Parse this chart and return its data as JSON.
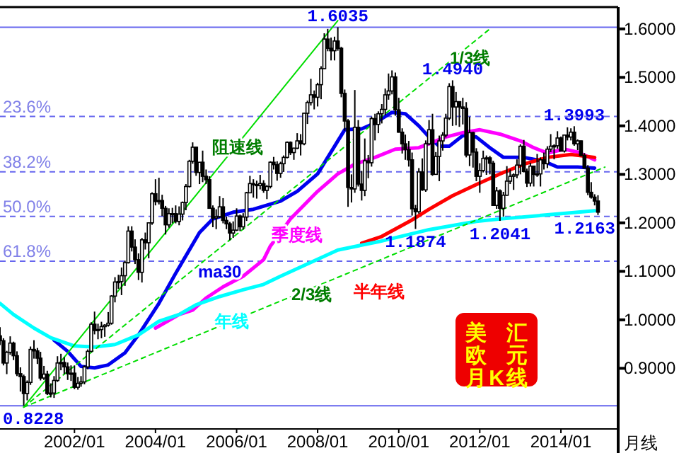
{
  "chart_data": {
    "type": "candlestick",
    "xlim": [
      "2000-03",
      "2015-06"
    ],
    "ylim": [
      0.775,
      1.645
    ],
    "xticks": [
      {
        "value": "2002-01",
        "label": "2002/01"
      },
      {
        "value": "2004-01",
        "label": "2004/01"
      },
      {
        "value": "2006-01",
        "label": "2006/01"
      },
      {
        "value": "2008-01",
        "label": "2008/01"
      },
      {
        "value": "2010-01",
        "label": "2010/01"
      },
      {
        "value": "2012-01",
        "label": "2012/01"
      },
      {
        "value": "2014-01",
        "label": "2014/01"
      }
    ],
    "yticks": [
      {
        "value": 0.9,
        "label": "0.9000"
      },
      {
        "value": 1.0,
        "label": "1.0000"
      },
      {
        "value": 1.1,
        "label": "1.1000"
      },
      {
        "value": 1.2,
        "label": "1.2000"
      },
      {
        "value": 1.3,
        "label": "1.3000"
      },
      {
        "value": 1.4,
        "label": "1.4000"
      },
      {
        "value": 1.5,
        "label": "1.5000"
      },
      {
        "value": 1.6,
        "label": "1.6000"
      }
    ],
    "series": [
      {
        "color": "#000000",
        "x": [
          "2000-03",
          "2000-04",
          "2000-05",
          "2000-06",
          "2000-07",
          "2000-08",
          "2000-09",
          "2000-10",
          "2000-11",
          "2000-12",
          "2001-01",
          "2001-02",
          "2001-03",
          "2001-04",
          "2001-05",
          "2001-06",
          "2001-07",
          "2001-08",
          "2001-09",
          "2001-10",
          "2001-11",
          "2001-12",
          "2002-01",
          "2002-02",
          "2002-03",
          "2002-04",
          "2002-05",
          "2002-06",
          "2002-07",
          "2002-08",
          "2002-09",
          "2002-10",
          "2002-11",
          "2002-12",
          "2003-01",
          "2003-02",
          "2003-03",
          "2003-04",
          "2003-05",
          "2003-06",
          "2003-07",
          "2003-08",
          "2003-09",
          "2003-10",
          "2003-11",
          "2003-12",
          "2004-01",
          "2004-02",
          "2004-03",
          "2004-04",
          "2004-05",
          "2004-06",
          "2004-07",
          "2004-08",
          "2004-09",
          "2004-10",
          "2004-11",
          "2004-12",
          "2005-01",
          "2005-02",
          "2005-03",
          "2005-04",
          "2005-05",
          "2005-06",
          "2005-07",
          "2005-08",
          "2005-09",
          "2005-10",
          "2005-11",
          "2005-12",
          "2006-01",
          "2006-02",
          "2006-03",
          "2006-04",
          "2006-05",
          "2006-06",
          "2006-07",
          "2006-08",
          "2006-09",
          "2006-10",
          "2006-11",
          "2006-12",
          "2007-01",
          "2007-02",
          "2007-03",
          "2007-04",
          "2007-05",
          "2007-06",
          "2007-07",
          "2007-08",
          "2007-09",
          "2007-10",
          "2007-11",
          "2007-12",
          "2008-01",
          "2008-02",
          "2008-03",
          "2008-04",
          "2008-05",
          "2008-06",
          "2008-07",
          "2008-08",
          "2008-09",
          "2008-10",
          "2008-11",
          "2008-12",
          "2009-01",
          "2009-02",
          "2009-03",
          "2009-04",
          "2009-05",
          "2009-06",
          "2009-07",
          "2009-08",
          "2009-09",
          "2009-10",
          "2009-11",
          "2009-12",
          "2010-01",
          "2010-02",
          "2010-03",
          "2010-04",
          "2010-05",
          "2010-06",
          "2010-07",
          "2010-08",
          "2010-09",
          "2010-10",
          "2010-11",
          "2010-12",
          "2011-01",
          "2011-02",
          "2011-03",
          "2011-04",
          "2011-05",
          "2011-06",
          "2011-07",
          "2011-08",
          "2011-09",
          "2011-10",
          "2011-11",
          "2011-12",
          "2012-01",
          "2012-02",
          "2012-03",
          "2012-04",
          "2012-05",
          "2012-06",
          "2012-07",
          "2012-08",
          "2012-09",
          "2012-10",
          "2012-11",
          "2012-12",
          "2013-01",
          "2013-02",
          "2013-03",
          "2013-04",
          "2013-05",
          "2013-06",
          "2013-07",
          "2013-08",
          "2013-09",
          "2013-10",
          "2013-11",
          "2013-12",
          "2014-01",
          "2014-02",
          "2014-03",
          "2014-04",
          "2014-05",
          "2014-06",
          "2014-07",
          "2014-08",
          "2014-09",
          "2014-10",
          "2014-11",
          "2014-12"
        ],
        "ohlc": [
          [
            0.967,
            0.985,
            0.948,
            0.957
          ],
          [
            0.957,
            0.962,
            0.906,
            0.911
          ],
          [
            0.911,
            0.936,
            0.888,
            0.933
          ],
          [
            0.933,
            0.966,
            0.928,
            0.952
          ],
          [
            0.952,
            0.955,
            0.917,
            0.926
          ],
          [
            0.926,
            0.935,
            0.884,
            0.889
          ],
          [
            0.889,
            0.902,
            0.852,
            0.883
          ],
          [
            0.883,
            0.887,
            0.8228,
            0.848
          ],
          [
            0.848,
            0.875,
            0.834,
            0.871
          ],
          [
            0.871,
            0.945,
            0.866,
            0.939
          ],
          [
            0.939,
            0.958,
            0.92,
            0.936
          ],
          [
            0.936,
            0.942,
            0.909,
            0.921
          ],
          [
            0.921,
            0.934,
            0.875,
            0.88
          ],
          [
            0.88,
            0.905,
            0.876,
            0.888
          ],
          [
            0.888,
            0.895,
            0.845,
            0.848
          ],
          [
            0.848,
            0.869,
            0.84,
            0.849
          ],
          [
            0.849,
            0.884,
            0.839,
            0.875
          ],
          [
            0.875,
            0.925,
            0.872,
            0.911
          ],
          [
            0.911,
            0.93,
            0.896,
            0.912
          ],
          [
            0.912,
            0.923,
            0.888,
            0.903
          ],
          [
            0.903,
            0.912,
            0.876,
            0.889
          ],
          [
            0.889,
            0.906,
            0.874,
            0.89
          ],
          [
            0.89,
            0.906,
            0.857,
            0.861
          ],
          [
            0.861,
            0.882,
            0.856,
            0.869
          ],
          [
            0.869,
            0.884,
            0.862,
            0.872
          ],
          [
            0.872,
            0.906,
            0.867,
            0.903
          ],
          [
            0.903,
            0.939,
            0.898,
            0.935
          ],
          [
            0.935,
            0.995,
            0.933,
            0.991
          ],
          [
            0.991,
            1.017,
            0.97,
            0.978
          ],
          [
            0.978,
            0.992,
            0.96,
            0.98
          ],
          [
            0.98,
            0.996,
            0.962,
            0.986
          ],
          [
            0.986,
            0.991,
            0.965,
            0.989
          ],
          [
            0.989,
            1.016,
            0.986,
            0.993
          ],
          [
            0.993,
            1.051,
            0.99,
            1.049
          ],
          [
            1.049,
            1.088,
            1.036,
            1.078
          ],
          [
            1.078,
            1.093,
            1.064,
            1.079
          ],
          [
            1.079,
            1.108,
            1.051,
            1.091
          ],
          [
            1.091,
            1.122,
            1.07,
            1.118
          ],
          [
            1.118,
            1.193,
            1.116,
            1.183
          ],
          [
            1.183,
            1.193,
            1.141,
            1.15
          ],
          [
            1.15,
            1.166,
            1.115,
            1.124
          ],
          [
            1.124,
            1.137,
            1.082,
            1.098
          ],
          [
            1.098,
            1.169,
            1.077,
            1.165
          ],
          [
            1.165,
            1.18,
            1.145,
            1.159
          ],
          [
            1.159,
            1.2,
            1.127,
            1.2
          ],
          [
            1.2,
            1.263,
            1.196,
            1.26
          ],
          [
            1.26,
            1.29,
            1.236,
            1.244
          ],
          [
            1.244,
            1.293,
            1.238,
            1.246
          ],
          [
            1.246,
            1.258,
            1.214,
            1.23
          ],
          [
            1.23,
            1.235,
            1.176,
            1.196
          ],
          [
            1.196,
            1.23,
            1.19,
            1.219
          ],
          [
            1.219,
            1.231,
            1.199,
            1.219
          ],
          [
            1.219,
            1.236,
            1.199,
            1.203
          ],
          [
            1.203,
            1.234,
            1.195,
            1.218
          ],
          [
            1.218,
            1.244,
            1.205,
            1.242
          ],
          [
            1.242,
            1.28,
            1.226,
            1.275
          ],
          [
            1.275,
            1.33,
            1.273,
            1.327
          ],
          [
            1.327,
            1.366,
            1.322,
            1.356
          ],
          [
            1.356,
            1.357,
            1.297,
            1.304
          ],
          [
            1.304,
            1.325,
            1.28,
            1.325
          ],
          [
            1.325,
            1.349,
            1.284,
            1.296
          ],
          [
            1.296,
            1.31,
            1.28,
            1.289
          ],
          [
            1.289,
            1.296,
            1.229,
            1.23
          ],
          [
            1.23,
            1.236,
            1.191,
            1.21
          ],
          [
            1.21,
            1.228,
            1.187,
            1.213
          ],
          [
            1.213,
            1.255,
            1.21,
            1.233
          ],
          [
            1.233,
            1.251,
            1.199,
            1.205
          ],
          [
            1.205,
            1.213,
            1.187,
            1.198
          ],
          [
            1.198,
            1.202,
            1.164,
            1.179
          ],
          [
            1.179,
            1.203,
            1.169,
            1.185
          ],
          [
            1.185,
            1.23,
            1.183,
            1.214
          ],
          [
            1.214,
            1.217,
            1.183,
            1.192
          ],
          [
            1.192,
            1.22,
            1.186,
            1.212
          ],
          [
            1.212,
            1.264,
            1.204,
            1.262
          ],
          [
            1.262,
            1.297,
            1.261,
            1.281
          ],
          [
            1.281,
            1.29,
            1.252,
            1.279
          ],
          [
            1.279,
            1.287,
            1.25,
            1.277
          ],
          [
            1.277,
            1.299,
            1.269,
            1.281
          ],
          [
            1.281,
            1.288,
            1.262,
            1.267
          ],
          [
            1.267,
            1.278,
            1.249,
            1.275
          ],
          [
            1.275,
            1.327,
            1.271,
            1.325
          ],
          [
            1.325,
            1.336,
            1.31,
            1.32
          ],
          [
            1.32,
            1.327,
            1.287,
            1.302
          ],
          [
            1.302,
            1.326,
            1.293,
            1.322
          ],
          [
            1.322,
            1.339,
            1.305,
            1.335
          ],
          [
            1.335,
            1.368,
            1.333,
            1.366
          ],
          [
            1.366,
            1.368,
            1.34,
            1.345
          ],
          [
            1.345,
            1.355,
            1.33,
            1.354
          ],
          [
            1.354,
            1.385,
            1.352,
            1.369
          ],
          [
            1.369,
            1.383,
            1.339,
            1.363
          ],
          [
            1.363,
            1.427,
            1.36,
            1.426
          ],
          [
            1.426,
            1.452,
            1.404,
            1.448
          ],
          [
            1.448,
            1.497,
            1.442,
            1.464
          ],
          [
            1.464,
            1.473,
            1.434,
            1.459
          ],
          [
            1.459,
            1.489,
            1.44,
            1.485
          ],
          [
            1.485,
            1.523,
            1.455,
            1.518
          ],
          [
            1.518,
            1.591,
            1.517,
            1.579
          ],
          [
            1.579,
            1.6,
            1.554,
            1.56
          ],
          [
            1.56,
            1.582,
            1.535,
            1.555
          ],
          [
            1.555,
            1.584,
            1.535,
            1.575
          ],
          [
            1.575,
            1.6035,
            1.555,
            1.56
          ],
          [
            1.56,
            1.563,
            1.459,
            1.467
          ],
          [
            1.467,
            1.475,
            1.39,
            1.41
          ],
          [
            1.41,
            1.414,
            1.233,
            1.273
          ],
          [
            1.273,
            1.3,
            1.242,
            1.27
          ],
          [
            1.27,
            1.474,
            1.262,
            1.397
          ],
          [
            1.397,
            1.412,
            1.275,
            1.28
          ],
          [
            1.28,
            1.307,
            1.246,
            1.267
          ],
          [
            1.267,
            1.374,
            1.255,
            1.328
          ],
          [
            1.328,
            1.34,
            1.292,
            1.324
          ],
          [
            1.324,
            1.419,
            1.316,
            1.415
          ],
          [
            1.415,
            1.425,
            1.37,
            1.403
          ],
          [
            1.403,
            1.43,
            1.385,
            1.425
          ],
          [
            1.425,
            1.445,
            1.405,
            1.434
          ],
          [
            1.434,
            1.477,
            1.422,
            1.464
          ],
          [
            1.464,
            1.508,
            1.454,
            1.472
          ],
          [
            1.472,
            1.5144,
            1.465,
            1.501
          ],
          [
            1.501,
            1.51,
            1.421,
            1.433
          ],
          [
            1.433,
            1.458,
            1.386,
            1.387
          ],
          [
            1.387,
            1.395,
            1.343,
            1.363
          ],
          [
            1.363,
            1.382,
            1.33,
            1.351
          ],
          [
            1.351,
            1.369,
            1.316,
            1.33
          ],
          [
            1.33,
            1.345,
            1.215,
            1.229
          ],
          [
            1.229,
            1.237,
            1.1874,
            1.223
          ],
          [
            1.223,
            1.313,
            1.219,
            1.305
          ],
          [
            1.305,
            1.333,
            1.266,
            1.268
          ],
          [
            1.268,
            1.37,
            1.264,
            1.363
          ],
          [
            1.363,
            1.412,
            1.36,
            1.392
          ],
          [
            1.392,
            1.425,
            1.297,
            1.3
          ],
          [
            1.3,
            1.346,
            1.3,
            1.337
          ],
          [
            1.337,
            1.38,
            1.286,
            1.369
          ],
          [
            1.369,
            1.387,
            1.349,
            1.381
          ],
          [
            1.381,
            1.425,
            1.376,
            1.416
          ],
          [
            1.416,
            1.488,
            1.412,
            1.481
          ],
          [
            1.481,
            1.494,
            1.4,
            1.439
          ],
          [
            1.439,
            1.47,
            1.401,
            1.45
          ],
          [
            1.45,
            1.45,
            1.398,
            1.439
          ],
          [
            1.439,
            1.458,
            1.403,
            1.436
          ],
          [
            1.436,
            1.449,
            1.335,
            1.34
          ],
          [
            1.34,
            1.419,
            1.317,
            1.386
          ],
          [
            1.386,
            1.388,
            1.314,
            1.346
          ],
          [
            1.346,
            1.354,
            1.286,
            1.296
          ],
          [
            1.296,
            1.323,
            1.262,
            1.308
          ],
          [
            1.308,
            1.349,
            1.304,
            1.333
          ],
          [
            1.333,
            1.339,
            1.299,
            1.334
          ],
          [
            1.334,
            1.338,
            1.3,
            1.323
          ],
          [
            1.323,
            1.328,
            1.236,
            1.236
          ],
          [
            1.236,
            1.274,
            1.229,
            1.266
          ],
          [
            1.266,
            1.269,
            1.2041,
            1.23
          ],
          [
            1.23,
            1.264,
            1.213,
            1.257
          ],
          [
            1.257,
            1.317,
            1.256,
            1.286
          ],
          [
            1.286,
            1.31,
            1.28,
            1.296
          ],
          [
            1.296,
            1.302,
            1.268,
            1.299
          ],
          [
            1.299,
            1.331,
            1.292,
            1.319
          ],
          [
            1.319,
            1.362,
            1.3,
            1.358
          ],
          [
            1.358,
            1.371,
            1.304,
            1.306
          ],
          [
            1.306,
            1.312,
            1.274,
            1.282
          ],
          [
            1.282,
            1.324,
            1.275,
            1.317
          ],
          [
            1.317,
            1.318,
            1.275,
            1.3
          ],
          [
            1.3,
            1.342,
            1.295,
            1.301
          ],
          [
            1.301,
            1.335,
            1.275,
            1.33
          ],
          [
            1.33,
            1.345,
            1.31,
            1.322
          ],
          [
            1.322,
            1.358,
            1.313,
            1.352
          ],
          [
            1.352,
            1.383,
            1.346,
            1.358
          ],
          [
            1.358,
            1.362,
            1.331,
            1.359
          ],
          [
            1.359,
            1.389,
            1.353,
            1.375
          ],
          [
            1.375,
            1.378,
            1.348,
            1.348
          ],
          [
            1.348,
            1.382,
            1.345,
            1.381
          ],
          [
            1.381,
            1.397,
            1.37,
            1.377
          ],
          [
            1.377,
            1.395,
            1.37,
            1.387
          ],
          [
            1.387,
            1.3993,
            1.359,
            1.363
          ],
          [
            1.363,
            1.372,
            1.35,
            1.369
          ],
          [
            1.369,
            1.37,
            1.337,
            1.339
          ],
          [
            1.339,
            1.344,
            1.312,
            1.313
          ],
          [
            1.313,
            1.319,
            1.257,
            1.263
          ],
          [
            1.263,
            1.284,
            1.25,
            1.253
          ],
          [
            1.253,
            1.259,
            1.236,
            1.245
          ],
          [
            1.245,
            1.257,
            1.2163,
            1.222
          ]
        ]
      },
      {
        "type": "line",
        "name": "ma30",
        "color": "#0000ee",
        "x": [
          "2001-07",
          "2001-11",
          "2002-03",
          "2002-07",
          "2002-11",
          "2003-04",
          "2003-08",
          "2004-02",
          "2004-07",
          "2005-02",
          "2005-06",
          "2005-12",
          "2006-06",
          "2007-02",
          "2007-07",
          "2008-01",
          "2008-07",
          "2008-09",
          "2009-02",
          "2009-06",
          "2009-11",
          "2010-03",
          "2010-07",
          "2010-10",
          "2011-01",
          "2011-04",
          "2011-08",
          "2011-12",
          "2012-04",
          "2012-08",
          "2013-02",
          "2013-08",
          "2013-12",
          "2014-06",
          "2014-11"
        ],
        "values": [
          0.958,
          0.935,
          0.904,
          0.901,
          0.907,
          0.932,
          0.969,
          1.034,
          1.096,
          1.18,
          1.208,
          1.222,
          1.228,
          1.245,
          1.265,
          1.301,
          1.369,
          1.392,
          1.394,
          1.406,
          1.428,
          1.425,
          1.4,
          1.377,
          1.358,
          1.358,
          1.38,
          1.377,
          1.355,
          1.335,
          1.335,
          1.327,
          1.315,
          1.315,
          1.313
        ]
      },
      {
        "type": "line",
        "name": "季度线",
        "color": "#ff00ff",
        "x": [
          "2004-01",
          "2004-08",
          "2004-12",
          "2005-04",
          "2005-09",
          "2006-03",
          "2006-09",
          "2006-11",
          "2007-05",
          "2008-01",
          "2008-07",
          "2008-12",
          "2009-06",
          "2009-12",
          "2010-07",
          "2011-03",
          "2011-08",
          "2012-01",
          "2012-07",
          "2013-01",
          "2013-05",
          "2013-09",
          "2014-02",
          "2014-06",
          "2014-11"
        ],
        "values": [
          0.983,
          1.011,
          1.02,
          1.045,
          1.068,
          1.09,
          1.124,
          1.152,
          1.208,
          1.265,
          1.301,
          1.321,
          1.335,
          1.352,
          1.355,
          1.377,
          1.386,
          1.392,
          1.383,
          1.369,
          1.355,
          1.344,
          1.352,
          1.346,
          1.33
        ]
      },
      {
        "type": "line",
        "name": "半年线",
        "color": "#ff0000",
        "x": [
          "2009-02",
          "2009-08",
          "2010-05",
          "2010-10",
          "2011-05",
          "2011-12",
          "2012-07",
          "2013-02",
          "2013-09",
          "2014-04",
          "2014-11"
        ],
        "values": [
          1.158,
          1.172,
          1.206,
          1.228,
          1.256,
          1.279,
          1.301,
          1.321,
          1.335,
          1.341,
          1.335
        ]
      },
      {
        "type": "line",
        "name": "年线",
        "color": "#00ffff",
        "x": [
          "2000-03",
          "2000-07",
          "2001-01",
          "2001-06",
          "2002-01",
          "2002-07",
          "2003-01",
          "2003-08",
          "2004-02",
          "2004-08",
          "2005-01",
          "2005-08",
          "2006-03",
          "2006-09",
          "2007-02",
          "2008-07",
          "2009-07",
          "2010-10",
          "2011-12",
          "2012-07",
          "2014-11"
        ],
        "values": [
          1.034,
          1.011,
          0.983,
          0.963,
          0.946,
          0.944,
          0.949,
          0.969,
          0.997,
          1.011,
          1.031,
          1.048,
          1.062,
          1.073,
          1.09,
          1.144,
          1.161,
          1.186,
          1.203,
          1.208,
          1.225
        ]
      },
      {
        "type": "line",
        "name": "阻速线",
        "color": "#00dd00",
        "x": [
          "2000-10",
          "2008-07"
        ],
        "values": [
          0.82,
          1.617
        ]
      },
      {
        "type": "line",
        "name": "1/3线",
        "color": "#00dd00",
        "line_style": "dashed",
        "x": [
          "2000-10",
          "2012-04"
        ],
        "values": [
          0.82,
          1.6
        ]
      },
      {
        "type": "line",
        "name": "2/3线",
        "color": "#00dd00",
        "line_style": "dashed",
        "x": [
          "2000-10",
          "2015-02"
        ],
        "values": [
          0.82,
          1.315
        ]
      }
    ],
    "ref_lines": [
      {
        "axis": "y",
        "value": 1.6035,
        "color": "#6666ee",
        "line_style": "solid"
      },
      {
        "axis": "y",
        "value": 1.4193,
        "color": "#6666ee",
        "line_style": "dashed"
      },
      {
        "axis": "y",
        "value": 1.3053,
        "color": "#6666ee",
        "line_style": "dashed"
      },
      {
        "axis": "y",
        "value": 1.2132,
        "color": "#6666ee",
        "line_style": "dashed"
      },
      {
        "axis": "y",
        "value": 1.121,
        "color": "#6666ee",
        "line_style": "dashed"
      },
      {
        "axis": "y",
        "value": 0.8228,
        "color": "#6666ee",
        "line_style": "solid"
      }
    ],
    "annotations": [
      {
        "text": "23.6%",
        "y": 1.4193
      },
      {
        "text": "38.2%",
        "y": 1.3053
      },
      {
        "text": "50.0%",
        "y": 1.2132
      },
      {
        "text": "61.8%",
        "y": 1.121
      },
      {
        "text": "1.6035",
        "x": "2008-07",
        "y": 1.6035
      },
      {
        "text": "0.8228",
        "x": "2000-10",
        "y": 0.8228
      },
      {
        "text": "1.4940",
        "x": "2011-05",
        "y": 1.494
      },
      {
        "text": "1.3993",
        "x": "2014-05",
        "y": 1.3993
      },
      {
        "text": "1.1874",
        "x": "2010-06",
        "y": 1.1874
      },
      {
        "text": "1.2041",
        "x": "2012-07",
        "y": 1.2041
      },
      {
        "text": "1.2163",
        "x": "2014-12",
        "y": 1.2163
      },
      "美汇",
      "欧元",
      "月K线",
      "月线"
    ]
  }
}
